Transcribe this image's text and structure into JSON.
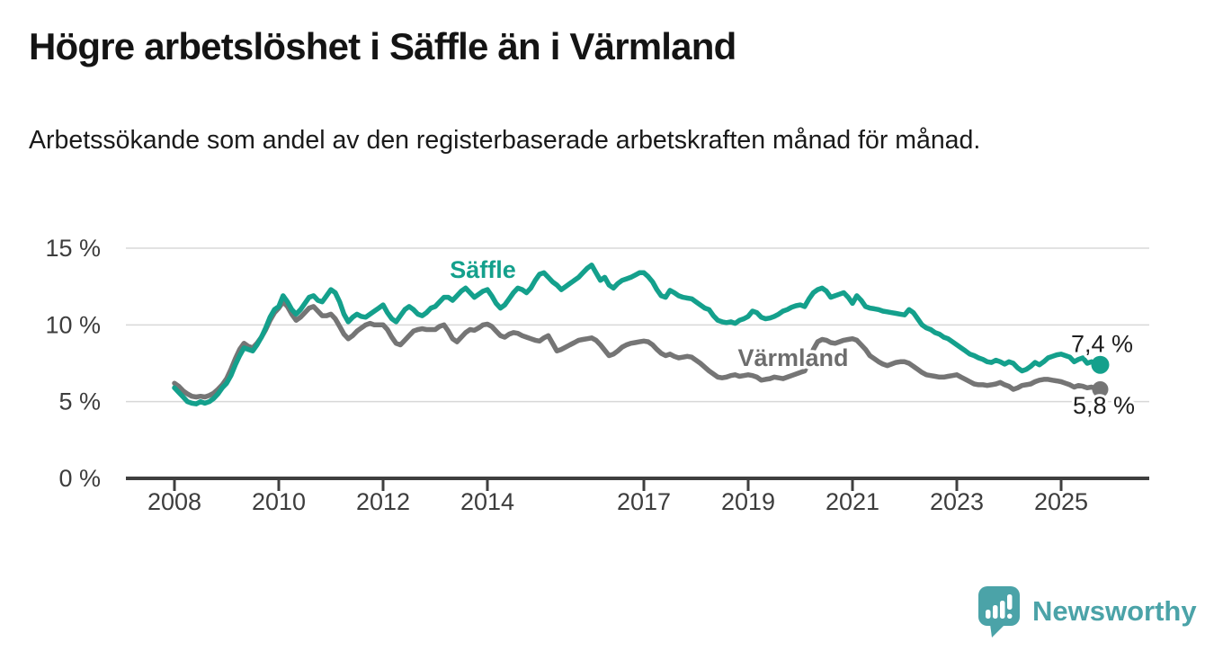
{
  "header": {
    "title": "Högre arbetslöshet i Säffle än i Värmland",
    "subtitle": "Arbetssökande som andel av den registerbaserade arbetskraften månad för månad."
  },
  "chart_data": {
    "type": "line",
    "unit": "%",
    "frequency": "monthly",
    "x_start": "2008-01",
    "x_end": "2025-10",
    "ylim": [
      0,
      15
    ],
    "grid": "horizontal",
    "legend": "inline-labels",
    "y_ticks": [
      {
        "value": 0,
        "label": "0 %"
      },
      {
        "value": 5,
        "label": "5 %"
      },
      {
        "value": 10,
        "label": "10 %"
      },
      {
        "value": 15,
        "label": "15 %"
      }
    ],
    "x_ticks": [
      {
        "year": 2008,
        "label": "2008"
      },
      {
        "year": 2010,
        "label": "2010"
      },
      {
        "year": 2012,
        "label": "2012"
      },
      {
        "year": 2014,
        "label": "2014"
      },
      {
        "year": 2017,
        "label": "2017"
      },
      {
        "year": 2019,
        "label": "2019"
      },
      {
        "year": 2021,
        "label": "2021"
      },
      {
        "year": 2023,
        "label": "2023"
      },
      {
        "year": 2025,
        "label": "2025"
      }
    ],
    "series": [
      {
        "name": "Värmland",
        "color": "#757575",
        "label_color": "#6d6d6d",
        "end_label": "5,8 %",
        "end_value": 5.8,
        "values": [
          6.2,
          6.0,
          5.7,
          5.5,
          5.35,
          5.3,
          5.35,
          5.3,
          5.4,
          5.55,
          5.8,
          6.1,
          6.5,
          7.1,
          7.8,
          8.4,
          8.8,
          8.6,
          8.5,
          8.8,
          9.2,
          9.7,
          10.3,
          10.8,
          11.1,
          11.5,
          11.2,
          10.7,
          10.3,
          10.5,
          10.8,
          11.1,
          11.2,
          10.9,
          10.6,
          10.6,
          10.7,
          10.4,
          9.9,
          9.4,
          9.1,
          9.3,
          9.6,
          9.8,
          10.0,
          10.1,
          10.0,
          10.0,
          10.0,
          9.7,
          9.2,
          8.8,
          8.7,
          9.0,
          9.3,
          9.6,
          9.7,
          9.75,
          9.7,
          9.7,
          9.7,
          9.9,
          10.0,
          9.6,
          9.1,
          8.9,
          9.2,
          9.5,
          9.7,
          9.65,
          9.8,
          10.0,
          10.05,
          9.9,
          9.6,
          9.3,
          9.2,
          9.4,
          9.5,
          9.45,
          9.3,
          9.2,
          9.1,
          9.0,
          8.95,
          9.15,
          9.3,
          8.8,
          8.3,
          8.4,
          8.55,
          8.7,
          8.85,
          9.0,
          9.05,
          9.1,
          9.15,
          9.0,
          8.7,
          8.35,
          8.0,
          8.1,
          8.3,
          8.55,
          8.7,
          8.8,
          8.85,
          8.9,
          8.95,
          8.9,
          8.7,
          8.4,
          8.15,
          8.0,
          8.1,
          7.95,
          7.85,
          7.9,
          7.95,
          7.9,
          7.7,
          7.5,
          7.25,
          7.0,
          6.8,
          6.6,
          6.55,
          6.6,
          6.7,
          6.75,
          6.65,
          6.7,
          6.75,
          6.7,
          6.6,
          6.4,
          6.45,
          6.5,
          6.6,
          6.55,
          6.5,
          6.6,
          6.7,
          6.8,
          6.9,
          7.0,
          7.6,
          8.4,
          8.9,
          9.05,
          9.0,
          8.85,
          8.8,
          8.9,
          9.0,
          9.05,
          9.1,
          9.0,
          8.7,
          8.4,
          8.0,
          7.8,
          7.6,
          7.45,
          7.35,
          7.45,
          7.55,
          7.6,
          7.6,
          7.5,
          7.3,
          7.1,
          6.9,
          6.75,
          6.7,
          6.65,
          6.6,
          6.6,
          6.65,
          6.7,
          6.75,
          6.6,
          6.45,
          6.3,
          6.15,
          6.1,
          6.1,
          6.05,
          6.1,
          6.15,
          6.25,
          6.1,
          6.0,
          5.8,
          5.9,
          6.05,
          6.1,
          6.15,
          6.3,
          6.4,
          6.45,
          6.45,
          6.4,
          6.35,
          6.3,
          6.2,
          6.1,
          5.95,
          6.05,
          6.0,
          5.9,
          5.95,
          5.85,
          5.8
        ]
      },
      {
        "name": "Säffle",
        "color": "#14a08c",
        "label_color": "#14a08c",
        "end_label": "7,4 %",
        "end_value": 7.4,
        "values": [
          5.9,
          5.6,
          5.3,
          5.0,
          4.9,
          4.85,
          5.0,
          4.9,
          5.0,
          5.2,
          5.5,
          5.9,
          6.2,
          6.7,
          7.4,
          8.0,
          8.5,
          8.4,
          8.3,
          8.7,
          9.2,
          9.8,
          10.5,
          11.0,
          11.2,
          11.9,
          11.5,
          11.0,
          10.7,
          11.0,
          11.4,
          11.8,
          11.9,
          11.6,
          11.5,
          11.9,
          12.3,
          12.1,
          11.5,
          10.7,
          10.2,
          10.5,
          10.7,
          10.55,
          10.5,
          10.7,
          10.9,
          11.1,
          11.3,
          10.8,
          10.4,
          10.2,
          10.6,
          11.0,
          11.2,
          11.0,
          10.7,
          10.6,
          10.8,
          11.1,
          11.2,
          11.5,
          11.8,
          11.8,
          11.6,
          11.9,
          12.2,
          12.4,
          12.1,
          11.8,
          12.0,
          12.2,
          12.3,
          11.9,
          11.4,
          11.1,
          11.3,
          11.7,
          12.1,
          12.4,
          12.3,
          12.1,
          12.4,
          12.9,
          13.3,
          13.4,
          13.1,
          12.8,
          12.6,
          12.3,
          12.5,
          12.7,
          12.9,
          13.1,
          13.4,
          13.7,
          13.9,
          13.4,
          12.9,
          13.1,
          12.6,
          12.4,
          12.7,
          12.9,
          13.0,
          13.1,
          13.25,
          13.4,
          13.4,
          13.15,
          12.8,
          12.3,
          11.9,
          11.8,
          12.25,
          12.1,
          11.9,
          11.8,
          11.75,
          11.7,
          11.5,
          11.3,
          11.1,
          11.0,
          10.6,
          10.3,
          10.2,
          10.15,
          10.2,
          10.1,
          10.3,
          10.4,
          10.55,
          10.9,
          10.8,
          10.5,
          10.4,
          10.45,
          10.55,
          10.7,
          10.9,
          11.0,
          11.15,
          11.25,
          11.3,
          11.2,
          11.7,
          12.1,
          12.3,
          12.4,
          12.2,
          11.8,
          11.9,
          12.0,
          12.1,
          11.8,
          11.4,
          11.9,
          11.6,
          11.2,
          11.1,
          11.05,
          11.0,
          10.9,
          10.85,
          10.8,
          10.75,
          10.7,
          10.65,
          11.0,
          10.8,
          10.4,
          10.0,
          9.8,
          9.7,
          9.5,
          9.4,
          9.2,
          9.1,
          8.9,
          8.7,
          8.5,
          8.3,
          8.1,
          8.0,
          7.85,
          7.75,
          7.6,
          7.55,
          7.7,
          7.6,
          7.45,
          7.6,
          7.5,
          7.2,
          7.0,
          7.1,
          7.3,
          7.55,
          7.4,
          7.6,
          7.85,
          7.95,
          8.05,
          8.1,
          8.0,
          7.9,
          7.6,
          7.75,
          7.85,
          7.5,
          7.6,
          7.45,
          7.4
        ]
      }
    ]
  },
  "branding": {
    "logo_text": "Newsworthy",
    "logo_color": "#4ba3a8"
  },
  "colors": {
    "background": "#ffffff",
    "axis": "#3f3f3f",
    "gridline": "#d8d8d8"
  }
}
